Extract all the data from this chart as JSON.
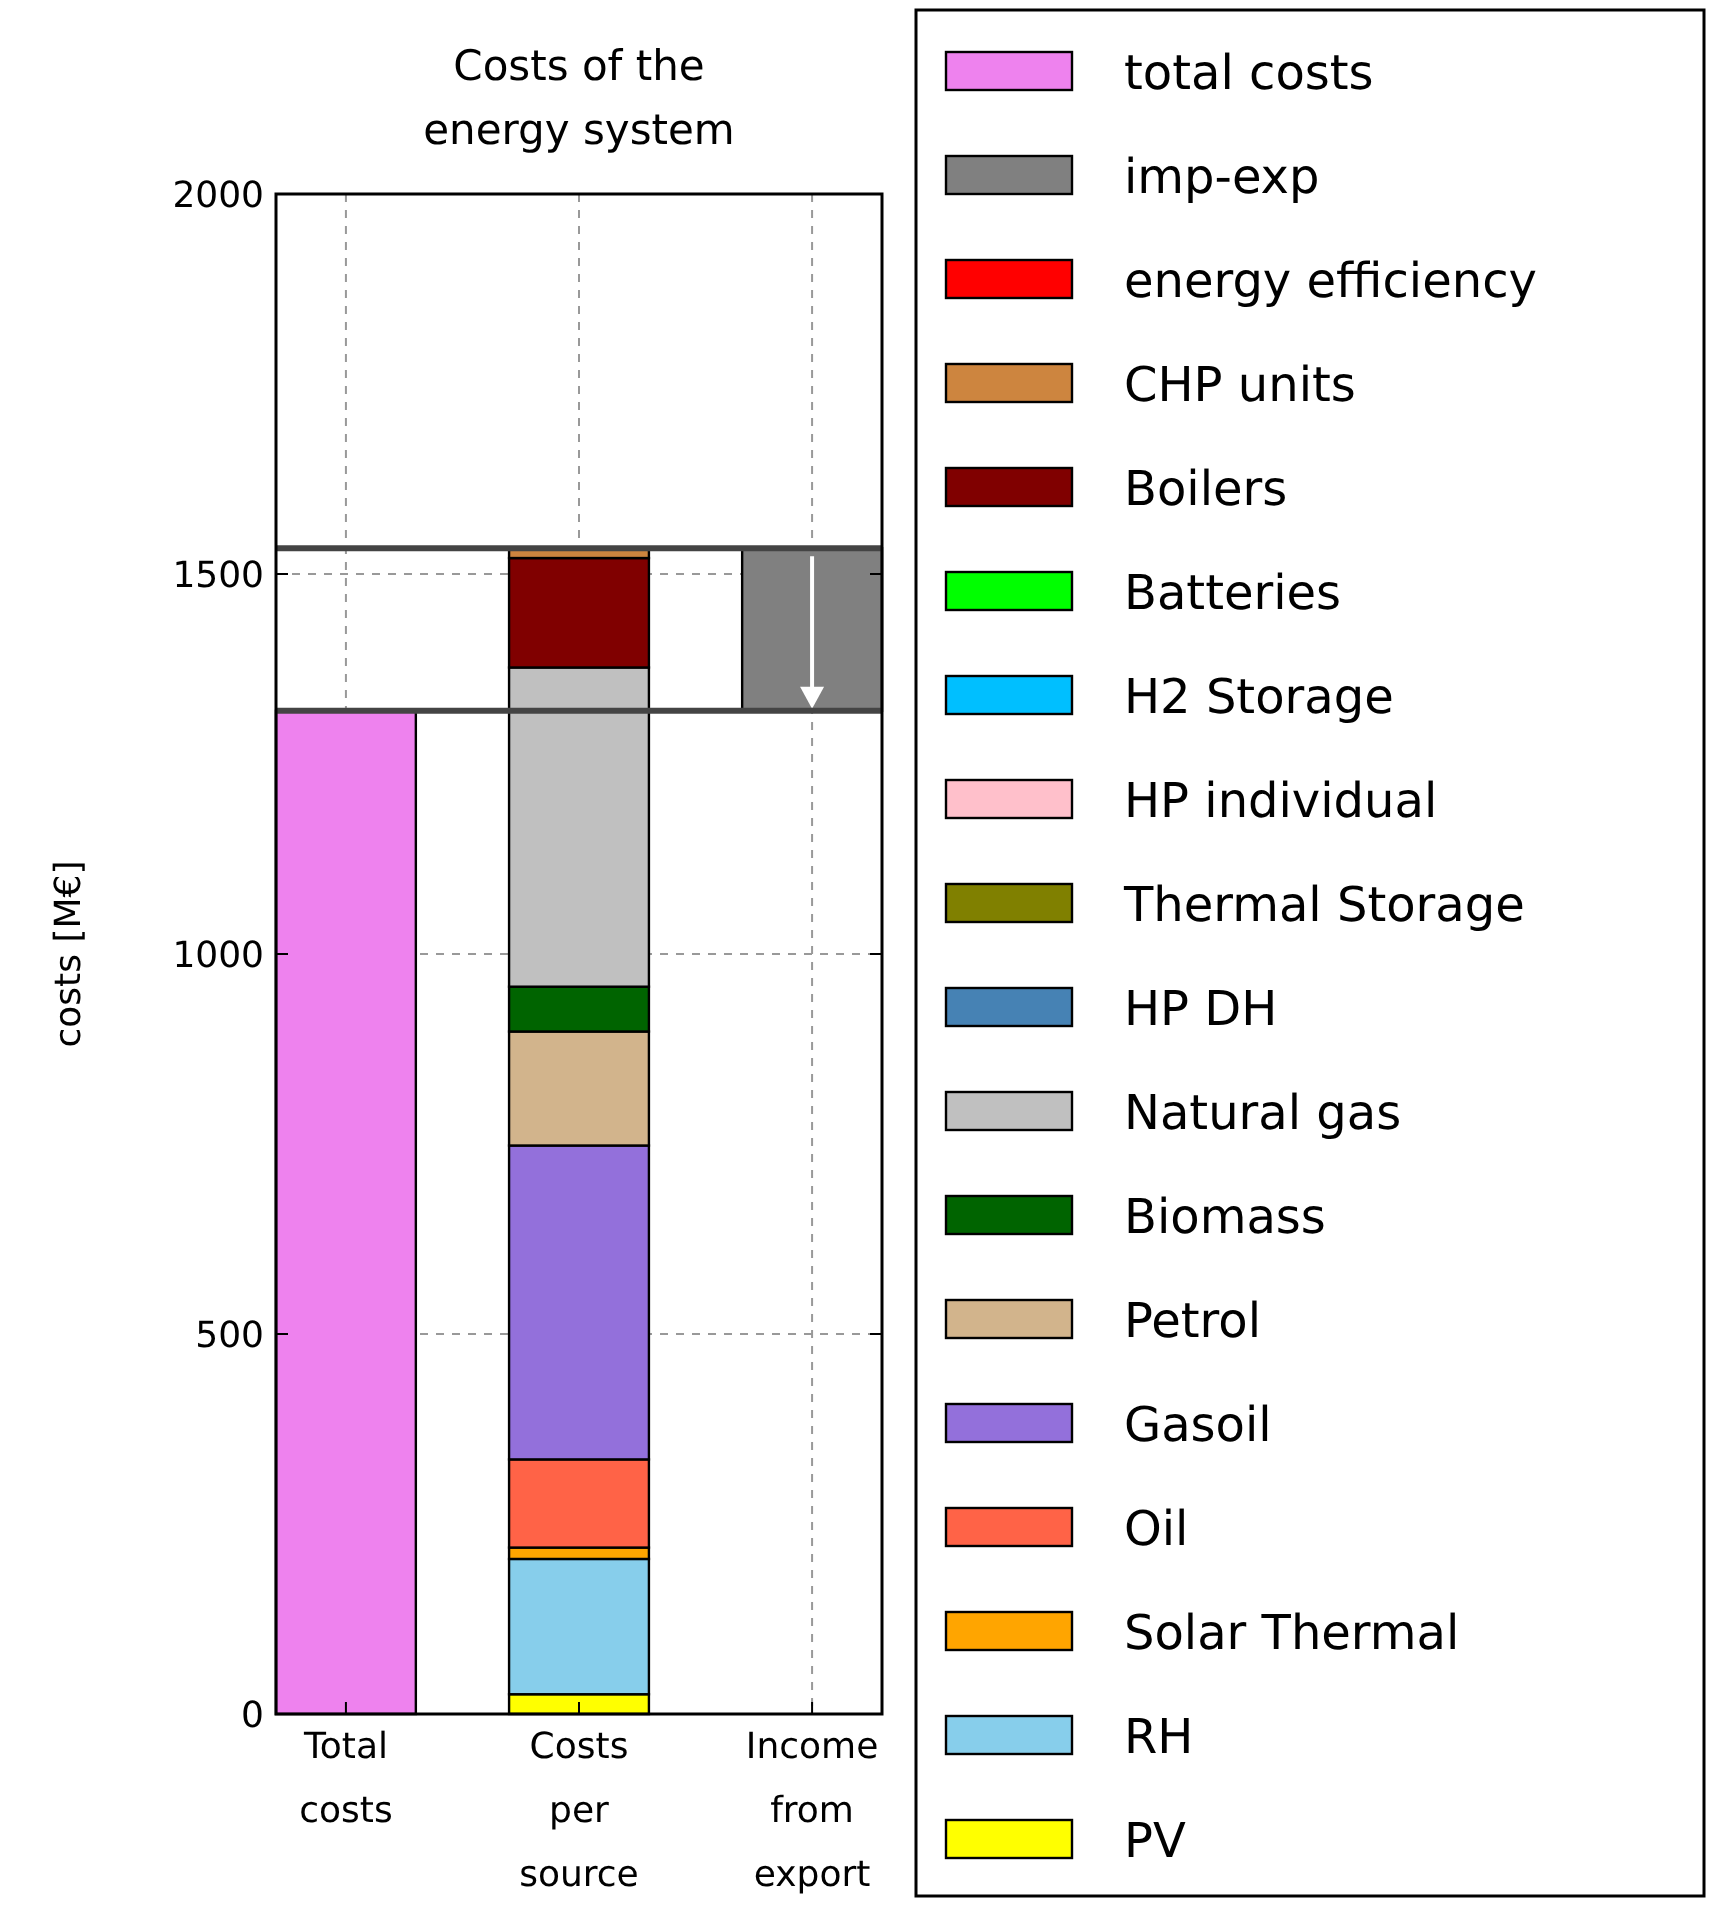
{
  "chart_data": {
    "type": "bar",
    "title": "Costs of the energy system",
    "ylabel": "costs [M€]",
    "categories": [
      "Total costs",
      "Costs per source",
      "Income from export"
    ],
    "stacked": true,
    "ylim": [
      0,
      2000
    ],
    "yticks": [
      0,
      500,
      1000,
      1500,
      2000
    ],
    "grid": true,
    "legend": "right",
    "ref_lines": [
      {
        "axis": "y",
        "value": 1320,
        "label": null
      },
      {
        "axis": "y",
        "value": 1534,
        "label": null
      }
    ],
    "series": [
      {
        "name": "PV",
        "color": "#ffff00",
        "values": [
          null,
          26,
          null
        ]
      },
      {
        "name": "RH",
        "color": "#87ceeb",
        "values": [
          null,
          178,
          null
        ]
      },
      {
        "name": "Solar Thermal",
        "color": "#ffa500",
        "values": [
          null,
          15,
          null
        ]
      },
      {
        "name": "Oil",
        "color": "#ff6347",
        "values": [
          null,
          116,
          null
        ]
      },
      {
        "name": "Gasoil",
        "color": "#9370db",
        "values": [
          null,
          413,
          null
        ]
      },
      {
        "name": "Petrol",
        "color": "#d2b48c",
        "values": [
          null,
          150,
          null
        ]
      },
      {
        "name": "Biomass",
        "color": "#006400",
        "values": [
          null,
          59,
          null
        ]
      },
      {
        "name": "Natural gas",
        "color": "#c0c0c0",
        "values": [
          null,
          420,
          null
        ]
      },
      {
        "name": "HP DH",
        "color": "#4682b4",
        "values": [
          null,
          0,
          null
        ]
      },
      {
        "name": "Thermal Storage",
        "color": "#808000",
        "values": [
          null,
          0,
          null
        ]
      },
      {
        "name": "HP individual",
        "color": "#ffc0cb",
        "values": [
          null,
          0,
          null
        ]
      },
      {
        "name": "H2 Storage",
        "color": "#00bfff",
        "values": [
          null,
          0,
          null
        ]
      },
      {
        "name": "Batteries",
        "color": "#00ff00",
        "values": [
          null,
          0,
          null
        ]
      },
      {
        "name": "Boilers",
        "color": "#800000",
        "values": [
          null,
          144,
          null
        ]
      },
      {
        "name": "CHP units",
        "color": "#cd853f",
        "values": [
          null,
          13,
          null
        ]
      },
      {
        "name": "energy efficiency",
        "color": "#ff0000",
        "values": [
          null,
          0,
          null
        ]
      },
      {
        "name": "imp-exp",
        "color": "#808080",
        "values": [
          null,
          null,
          214
        ],
        "base": [
          null,
          null,
          1320
        ]
      },
      {
        "name": "total costs",
        "color": "#ee82ee",
        "values": [
          1320,
          null,
          null
        ]
      }
    ]
  }
}
